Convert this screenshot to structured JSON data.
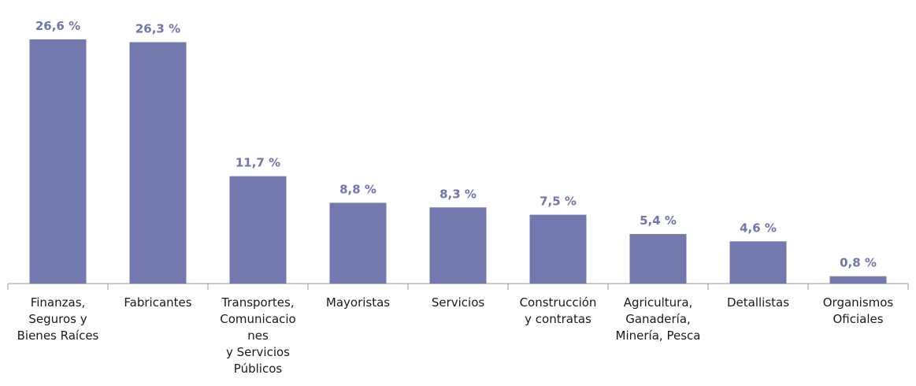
{
  "chart_data": {
    "type": "bar",
    "categories": [
      "Finanzas,\nSeguros y\nBienes Raíces",
      "Fabricantes",
      "Transportes,\nComunicacio\nnes\ny Servicios\nPúblicos",
      "Mayoristas",
      "Servicios",
      "Construcción\ny contratas",
      "Agricultura,\nGanadería,\nMinería, Pesca",
      "Detallistas",
      "Organismos\nOficiales"
    ],
    "values": [
      26.6,
      26.3,
      11.7,
      8.8,
      8.3,
      7.5,
      5.4,
      4.6,
      0.8
    ],
    "value_labels": [
      "26,6 %",
      "26,3 %",
      "11,7 %",
      "8,8 %",
      "8,3 %",
      "7,5 %",
      "5,4 %",
      "4,6 %",
      "0,8 %"
    ],
    "color": "#7379ae",
    "label_color": "#6f76ad"
  }
}
